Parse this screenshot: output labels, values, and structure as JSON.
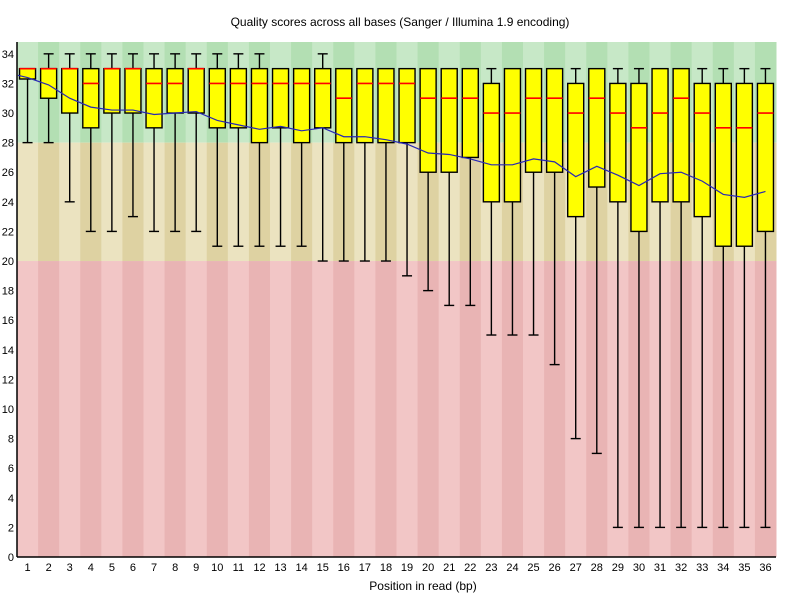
{
  "chart_data": {
    "type": "boxplot",
    "title": "Quality scores across all bases (Sanger / Illumina 1.9 encoding)",
    "xlabel": "Position in read (bp)",
    "ylabel": "",
    "ylim": [
      0,
      34.8
    ],
    "yticks": [
      0,
      2,
      4,
      6,
      8,
      10,
      12,
      14,
      16,
      18,
      20,
      22,
      24,
      26,
      28,
      30,
      32,
      34
    ],
    "x": [
      1,
      2,
      3,
      4,
      5,
      6,
      7,
      8,
      9,
      10,
      11,
      12,
      13,
      14,
      15,
      16,
      17,
      18,
      19,
      20,
      21,
      22,
      23,
      24,
      25,
      26,
      27,
      28,
      29,
      30,
      31,
      32,
      33,
      34,
      35,
      36
    ],
    "series": {
      "whisker_low": [
        28,
        28,
        24,
        22,
        22,
        23,
        22,
        22,
        22,
        21,
        21,
        21,
        21,
        21,
        20,
        20,
        20,
        20,
        19,
        18,
        17,
        17,
        15,
        15,
        15,
        13,
        8,
        7,
        2,
        2,
        2,
        2,
        2,
        2,
        2,
        2
      ],
      "q1": [
        32.3,
        31,
        30,
        29,
        30,
        30,
        29,
        30,
        30,
        29,
        29,
        28,
        29,
        28,
        29,
        28,
        28,
        28,
        28,
        26,
        26,
        27,
        24,
        24,
        26,
        26,
        23,
        25,
        24,
        22,
        24,
        24,
        23,
        21,
        21,
        22
      ],
      "median": [
        33,
        33,
        33,
        32,
        33,
        33,
        32,
        32,
        33,
        32,
        32,
        32,
        32,
        32,
        32,
        31,
        32,
        32,
        32,
        31,
        31,
        31,
        30,
        30,
        31,
        31,
        30,
        31,
        30,
        29,
        30,
        31,
        30,
        29,
        29,
        30
      ],
      "q3": [
        33,
        33,
        33,
        33,
        33,
        33,
        33,
        33,
        33,
        33,
        33,
        33,
        33,
        33,
        33,
        33,
        33,
        33,
        33,
        33,
        33,
        33,
        32,
        33,
        33,
        33,
        32,
        33,
        32,
        32,
        33,
        33,
        32,
        32,
        32,
        32
      ],
      "whisker_high": [
        33,
        34,
        34,
        34,
        34,
        34,
        34,
        34,
        34,
        34,
        34,
        34,
        33,
        33,
        34,
        33,
        33,
        33,
        33,
        33,
        33,
        33,
        33,
        33,
        33,
        33,
        33,
        33,
        33,
        33,
        33,
        33,
        33,
        33,
        33,
        33
      ],
      "mean": [
        32.4,
        31.9,
        31.0,
        30.4,
        30.2,
        30.2,
        29.9,
        30.0,
        30.1,
        29.5,
        29.2,
        28.9,
        29.1,
        28.8,
        29.0,
        28.4,
        28.4,
        28.2,
        27.9,
        27.3,
        27.2,
        26.9,
        26.5,
        26.5,
        26.9,
        26.7,
        25.7,
        26.4,
        25.8,
        25.1,
        25.9,
        26.0,
        25.4,
        24.5,
        24.3,
        24.7
      ]
    },
    "quality_zones": [
      {
        "name": "good",
        "from": 28,
        "to": 34.8,
        "light": "#c7e8c7",
        "dark": "#b3dfb3"
      },
      {
        "name": "medium",
        "from": 20,
        "to": 28,
        "light": "#ebe3c0",
        "dark": "#ded2a2"
      },
      {
        "name": "poor",
        "from": 0,
        "to": 20,
        "light": "#f2c6c6",
        "dark": "#e9b4b4"
      }
    ],
    "colors": {
      "box_fill": "#ffff00",
      "box_border": "#000000",
      "median_line": "#ff0000",
      "mean_line": "#2828b4",
      "axis": "#000000"
    },
    "legend_position": "none",
    "grid": "off"
  }
}
